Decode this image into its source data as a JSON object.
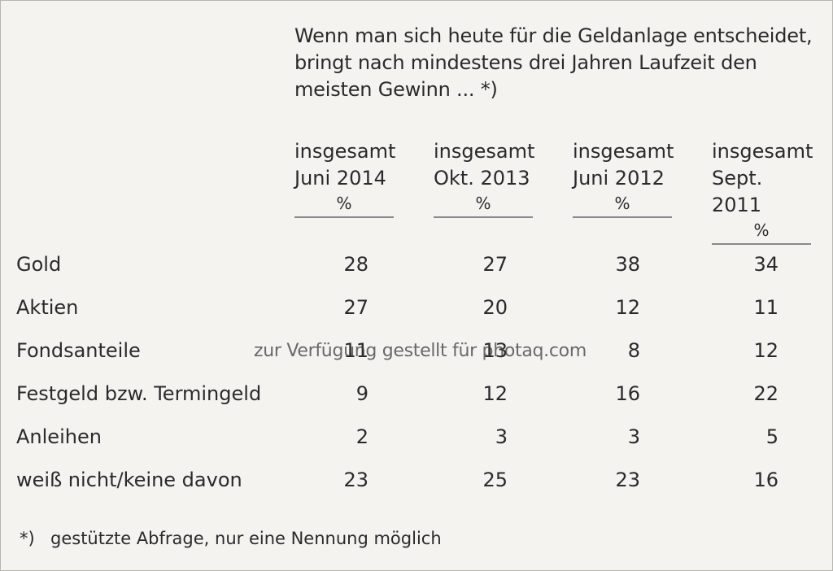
{
  "question": {
    "line1": "Wenn man sich heute für die Geldanlage entscheidet,",
    "line2": "bringt nach mindestens drei Jahren Laufzeit den",
    "line3": "meisten Gewinn ... *)"
  },
  "columns": [
    {
      "line1": "insgesamt",
      "line2": "Juni 2014",
      "unit": "%"
    },
    {
      "line1": "insgesamt",
      "line2": "Okt. 2013",
      "unit": "%"
    },
    {
      "line1": "insgesamt",
      "line2": "Juni 2012",
      "unit": "%"
    },
    {
      "line1": "insgesamt",
      "line2": "Sept. 2011",
      "unit": "%"
    }
  ],
  "rows": [
    {
      "label": "Gold",
      "values": [
        "28",
        "27",
        "38",
        "34"
      ]
    },
    {
      "label": "Aktien",
      "values": [
        "27",
        "20",
        "12",
        "11"
      ]
    },
    {
      "label": "Fondsanteile",
      "values": [
        "11",
        "13",
        "8",
        "12"
      ]
    },
    {
      "label": "Festgeld bzw. Termingeld",
      "values": [
        "9",
        "12",
        "16",
        "22"
      ]
    },
    {
      "label": "Anleihen",
      "values": [
        "2",
        "3",
        "3",
        "5"
      ]
    },
    {
      "label": "weiß nicht/keine davon",
      "values": [
        "23",
        "25",
        "23",
        "16"
      ]
    }
  ],
  "footnote": {
    "mark": "*)",
    "text": "gestützte Abfrage, nur eine Nennung möglich"
  },
  "watermark": "zur Verfügung gestellt für photaq.com"
}
